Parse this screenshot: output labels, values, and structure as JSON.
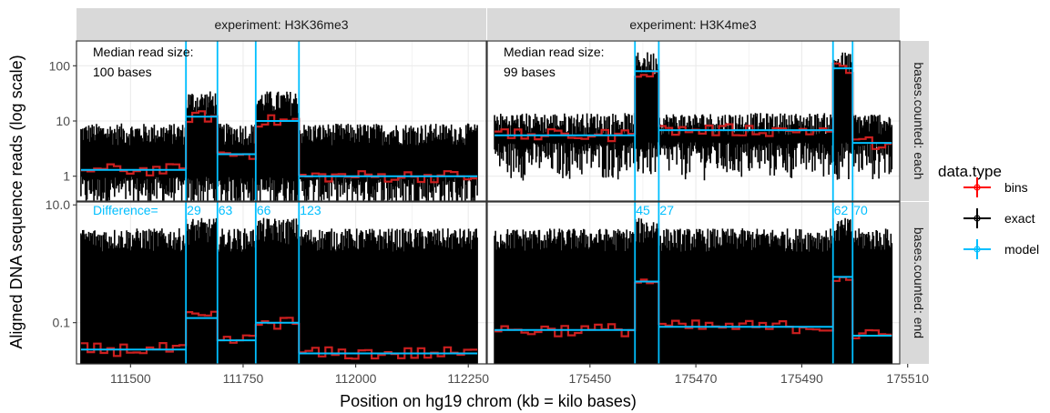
{
  "colors": {
    "bins": "#ff0000",
    "exact": "#000000",
    "model": "#00bfff",
    "panel_bg": "#ffffff",
    "grid": "#ebebeb",
    "strip_bg": "#d9d9d9"
  },
  "chart_data": {
    "type": "line",
    "facet_layout": "grid",
    "y_scale": "log",
    "ylabel": "Aligned DNA sequence reads (log scale)",
    "xlabel": "Position on hg19 chrom (kb = kilo bases)",
    "grid": true,
    "legend_position": "right",
    "legend": {
      "title": "data.type",
      "entries": [
        {
          "label": "bins",
          "color": "#ff0000"
        },
        {
          "label": "exact",
          "color": "#000000"
        },
        {
          "label": "model",
          "color": "#00bfff"
        }
      ]
    },
    "columns": [
      {
        "strip": "experiment: H3K36me3",
        "xlim": [
          111380,
          112290
        ],
        "xticks": [
          111500,
          111750,
          112000,
          112250
        ],
        "xtick_labels": [
          "111500",
          "111750",
          "112000",
          "112250"
        ],
        "exact_range": [
          111390,
          112270
        ],
        "note_lines": [
          "Median read size:",
          "100 bases"
        ],
        "changepoints": [
          111623,
          111693,
          111778,
          111874
        ],
        "differences": [
          "29",
          "63",
          "66",
          "123"
        ],
        "difference_label": "Difference="
      },
      {
        "strip": "experiment: H3K4me3",
        "xlim": [
          175430.6,
          175508.5
        ],
        "xticks": [
          175450,
          175470,
          175490,
          175510
        ],
        "xtick_labels": [
          "175450",
          "175470",
          "175490",
          "175510"
        ],
        "exact_range": [
          175432,
          175507
        ],
        "note_lines": [
          "Median read size:",
          "99 bases"
        ],
        "changepoints": [
          175458.5,
          175463,
          175495.9,
          175499.6
        ],
        "differences": [
          "45",
          "27",
          "62",
          "70"
        ],
        "difference_label": ""
      }
    ],
    "rows": [
      {
        "strip": "bases.counted: each",
        "ylim_log10": [
          -0.45,
          2.45
        ],
        "yticks": [
          1,
          10,
          100
        ],
        "ytick_labels": [
          "1",
          "10",
          "100"
        ],
        "exact_ranges": [
          {
            "base": 1.3,
            "spike_max": 9,
            "cp_max": 35
          },
          {
            "base": 5.5,
            "spike_max": 14,
            "cp_max": 180
          }
        ],
        "bins": [
          {
            "panel": 0,
            "segments": [
              [
                111390,
                111623,
                1.3
              ],
              [
                111623,
                111693,
                12
              ],
              [
                111693,
                111778,
                2.5
              ],
              [
                111778,
                111874,
                10
              ],
              [
                111874,
                112270,
                1.0
              ]
            ]
          },
          {
            "panel": 1,
            "segments": [
              [
                175432,
                175458.5,
                5.5
              ],
              [
                175458.5,
                175463,
                80
              ],
              [
                175463,
                175495.9,
                6.8
              ],
              [
                175495.9,
                175499.6,
                90
              ],
              [
                175499.6,
                175507,
                4.0
              ]
            ]
          }
        ]
      },
      {
        "strip": "bases.counted: end",
        "ylim_log10": [
          -1.7,
          1.05
        ],
        "yticks": [
          0.1,
          10.0
        ],
        "ytick_labels": [
          "0.1",
          "10.0"
        ],
        "exact_ranges": [
          {
            "base": 0.035,
            "spike_max": 4,
            "cp_max": 6
          },
          {
            "base": 0.075,
            "spike_max": 4,
            "cp_max": 6
          }
        ],
        "bins": [
          {
            "panel": 0,
            "segments": [
              [
                111390,
                111623,
                0.035
              ],
              [
                111623,
                111693,
                0.12
              ],
              [
                111693,
                111778,
                0.05
              ],
              [
                111778,
                111874,
                0.1
              ],
              [
                111874,
                112270,
                0.03
              ]
            ]
          },
          {
            "panel": 1,
            "segments": [
              [
                175432,
                175458.5,
                0.075
              ],
              [
                175458.5,
                175463,
                0.5
              ],
              [
                175463,
                175495.9,
                0.085
              ],
              [
                175495.9,
                175499.6,
                0.6
              ],
              [
                175499.6,
                175507,
                0.06
              ]
            ]
          }
        ]
      }
    ]
  }
}
